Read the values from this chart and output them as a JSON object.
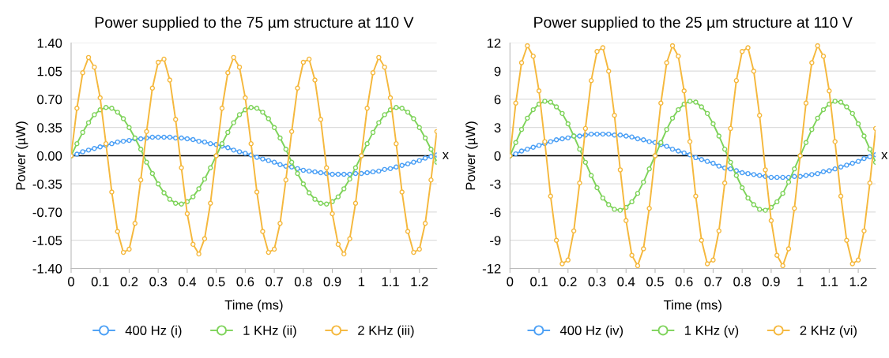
{
  "chart_data": [
    {
      "type": "line",
      "title": "Power supplied to the 75 µm structure at 110 V",
      "xlabel": "Time (ms)",
      "ylabel": "Power (µW)",
      "x": [
        0,
        0.02,
        0.04,
        0.06,
        0.08,
        0.1,
        0.12,
        0.14,
        0.16,
        0.18,
        0.2,
        0.22,
        0.24,
        0.26,
        0.28,
        0.3,
        0.32,
        0.34,
        0.36,
        0.38,
        0.4,
        0.42,
        0.44,
        0.46,
        0.48,
        0.5,
        0.52,
        0.54,
        0.56,
        0.58,
        0.6,
        0.62,
        0.64,
        0.66,
        0.68,
        0.7,
        0.72,
        0.74,
        0.76,
        0.78,
        0.8,
        0.82,
        0.84,
        0.86,
        0.88,
        0.9,
        0.92,
        0.94,
        0.96,
        0.98,
        1.0,
        1.02,
        1.04,
        1.06,
        1.08,
        1.1,
        1.12,
        1.14,
        1.16,
        1.18,
        1.2,
        1.22,
        1.24,
        1.26
      ],
      "series": [
        {
          "name": "400 Hz (i)",
          "color": "#4a9ff5",
          "values": [
            0,
            0.02,
            0.05,
            0.07,
            0.09,
            0.11,
            0.13,
            0.15,
            0.17,
            0.18,
            0.19,
            0.21,
            0.21,
            0.22,
            0.23,
            0.23,
            0.23,
            0.23,
            0.22,
            0.22,
            0.21,
            0.2,
            0.18,
            0.17,
            0.15,
            0.14,
            0.12,
            0.1,
            0.07,
            0.05,
            0.03,
            0.01,
            -0.02,
            -0.04,
            -0.06,
            -0.08,
            -0.11,
            -0.13,
            -0.14,
            -0.16,
            -0.18,
            -0.19,
            -0.2,
            -0.21,
            -0.22,
            -0.23,
            -0.23,
            -0.23,
            -0.23,
            -0.22,
            -0.22,
            -0.21,
            -0.2,
            -0.19,
            -0.17,
            -0.16,
            -0.14,
            -0.12,
            -0.1,
            -0.08,
            -0.06,
            -0.03,
            -0.01,
            0.01
          ]
        },
        {
          "name": "1 KHz (ii)",
          "color": "#7ed35a",
          "values": [
            0,
            0.15,
            0.29,
            0.41,
            0.51,
            0.57,
            0.6,
            0.59,
            0.54,
            0.46,
            0.35,
            0.22,
            0.08,
            -0.08,
            -0.22,
            -0.35,
            -0.46,
            -0.54,
            -0.59,
            -0.6,
            -0.57,
            -0.51,
            -0.41,
            -0.29,
            -0.15,
            0,
            0.15,
            0.29,
            0.41,
            0.51,
            0.57,
            0.6,
            0.59,
            0.54,
            0.46,
            0.35,
            0.22,
            0.08,
            -0.08,
            -0.22,
            -0.35,
            -0.46,
            -0.54,
            -0.59,
            -0.6,
            -0.57,
            -0.51,
            -0.41,
            -0.29,
            -0.15,
            0,
            0.15,
            0.29,
            0.41,
            0.51,
            0.57,
            0.6,
            0.59,
            0.54,
            0.46,
            0.35,
            0.22,
            0.08,
            -0.08
          ]
        },
        {
          "name": "2 KHz (iii)",
          "color": "#f5b83d",
          "values": [
            0,
            0.59,
            1.03,
            1.22,
            1.1,
            0.72,
            0.15,
            -0.45,
            -0.94,
            -1.2,
            -1.16,
            -0.84,
            -0.3,
            0.3,
            0.84,
            1.16,
            1.2,
            0.94,
            0.45,
            -0.15,
            -0.72,
            -1.1,
            -1.22,
            -1.03,
            -0.59,
            0,
            0.59,
            1.03,
            1.22,
            1.1,
            0.72,
            0.15,
            -0.45,
            -0.94,
            -1.2,
            -1.16,
            -0.84,
            -0.3,
            0.3,
            0.84,
            1.16,
            1.2,
            0.94,
            0.45,
            -0.15,
            -0.72,
            -1.1,
            -1.22,
            -1.03,
            -0.59,
            0,
            0.59,
            1.03,
            1.22,
            1.1,
            0.72,
            0.15,
            -0.45,
            -0.94,
            -1.2,
            -1.16,
            -0.84,
            -0.3,
            0.3
          ]
        }
      ],
      "xlim": [
        0,
        1.26
      ],
      "xticks": [
        0,
        0.1,
        0.2,
        0.3,
        0.4,
        0.5,
        0.6,
        0.7,
        0.8,
        0.9,
        1,
        1.1,
        1.2
      ],
      "ylim": [
        -1.4,
        1.4
      ],
      "yticks": [
        {
          "value": -1.4,
          "label": "-1.40"
        },
        {
          "value": -1.05,
          "label": "-1.05"
        },
        {
          "value": -0.7,
          "label": "-0.70"
        },
        {
          "value": -0.35,
          "label": "-0.35"
        },
        {
          "value": 0,
          "label": "0.00"
        },
        {
          "value": 0.35,
          "label": "0.35"
        },
        {
          "value": 0.7,
          "label": "0.70"
        },
        {
          "value": 1.05,
          "label": "1.05"
        },
        {
          "value": 1.4,
          "label": "1.40"
        }
      ],
      "ref_lines": [
        {
          "axis": "y",
          "value": 0,
          "color": "#000000"
        }
      ],
      "annotations": [
        {
          "text": "x",
          "x": 1.26,
          "y": 0
        }
      ],
      "grid": "y",
      "legend": "bottom",
      "marker": "circle",
      "line_style": "solid"
    },
    {
      "type": "line",
      "title": "Power supplied to the 25 µm structure at 110 V",
      "xlabel": "Time (ms)",
      "ylabel": "Power (µW)",
      "x": [
        0,
        0.02,
        0.04,
        0.06,
        0.08,
        0.1,
        0.12,
        0.14,
        0.16,
        0.18,
        0.2,
        0.22,
        0.24,
        0.26,
        0.28,
        0.3,
        0.32,
        0.34,
        0.36,
        0.38,
        0.4,
        0.42,
        0.44,
        0.46,
        0.48,
        0.5,
        0.52,
        0.54,
        0.56,
        0.58,
        0.6,
        0.62,
        0.64,
        0.66,
        0.68,
        0.7,
        0.72,
        0.74,
        0.76,
        0.78,
        0.8,
        0.82,
        0.84,
        0.86,
        0.88,
        0.9,
        0.92,
        0.94,
        0.96,
        0.98,
        1.0,
        1.02,
        1.04,
        1.06,
        1.08,
        1.1,
        1.12,
        1.14,
        1.16,
        1.18,
        1.2,
        1.22,
        1.24,
        1.26
      ],
      "series": [
        {
          "name": "400 Hz (iv)",
          "color": "#4a9ff5",
          "values": [
            0,
            0.2,
            0.5,
            0.7,
            0.9,
            1.1,
            1.3,
            1.5,
            1.7,
            1.8,
            1.9,
            2.1,
            2.1,
            2.2,
            2.3,
            2.3,
            2.3,
            2.3,
            2.2,
            2.2,
            2.1,
            2.0,
            1.8,
            1.7,
            1.5,
            1.4,
            1.2,
            1.0,
            0.7,
            0.5,
            0.3,
            0.1,
            -0.2,
            -0.4,
            -0.6,
            -0.8,
            -1.1,
            -1.3,
            -1.4,
            -1.6,
            -1.8,
            -1.9,
            -2.0,
            -2.1,
            -2.2,
            -2.3,
            -2.3,
            -2.3,
            -2.3,
            -2.2,
            -2.2,
            -2.1,
            -2.0,
            -1.9,
            -1.7,
            -1.6,
            -1.4,
            -1.2,
            -1.0,
            -0.8,
            -0.6,
            -0.3,
            -0.1,
            0.1
          ]
        },
        {
          "name": "1 KHz (v)",
          "color": "#7ed35a",
          "values": [
            0,
            1.4,
            2.8,
            4.0,
            4.9,
            5.5,
            5.8,
            5.7,
            5.2,
            4.5,
            3.4,
            2.1,
            0.7,
            -0.7,
            -2.1,
            -3.4,
            -4.5,
            -5.2,
            -5.7,
            -5.8,
            -5.5,
            -4.9,
            -4.0,
            -2.8,
            -1.4,
            0,
            1.4,
            2.8,
            4.0,
            4.9,
            5.5,
            5.8,
            5.7,
            5.2,
            4.5,
            3.4,
            2.1,
            0.7,
            -0.7,
            -2.1,
            -3.4,
            -4.5,
            -5.2,
            -5.7,
            -5.8,
            -5.5,
            -4.9,
            -4.0,
            -2.8,
            -1.4,
            0,
            1.4,
            2.8,
            4.0,
            4.9,
            5.5,
            5.8,
            5.7,
            5.2,
            4.5,
            3.4,
            2.1,
            0.7,
            -0.7
          ]
        },
        {
          "name": "2 KHz (vi)",
          "color": "#f5b83d",
          "values": [
            0,
            5.6,
            9.9,
            11.7,
            10.6,
            6.9,
            1.5,
            -4.3,
            -9.0,
            -11.5,
            -11.1,
            -8.0,
            -2.9,
            2.9,
            8.0,
            11.1,
            11.5,
            9.0,
            4.3,
            -1.5,
            -6.9,
            -10.6,
            -11.7,
            -9.9,
            -5.6,
            0,
            5.6,
            9.9,
            11.7,
            10.6,
            6.9,
            1.5,
            -4.3,
            -9.0,
            -11.5,
            -11.1,
            -8.0,
            -2.9,
            2.9,
            8.0,
            11.1,
            11.5,
            9.0,
            4.3,
            -1.5,
            -6.9,
            -10.6,
            -11.7,
            -9.9,
            -5.6,
            0,
            5.6,
            9.9,
            11.7,
            10.6,
            6.9,
            1.5,
            -4.3,
            -9.0,
            -11.5,
            -11.1,
            -8.0,
            -2.9,
            2.9
          ]
        }
      ],
      "xlim": [
        0,
        1.26
      ],
      "xticks": [
        0,
        0.1,
        0.2,
        0.3,
        0.4,
        0.5,
        0.6,
        0.7,
        0.8,
        0.9,
        1,
        1.1,
        1.2
      ],
      "ylim": [
        -12,
        12
      ],
      "yticks": [
        -12,
        -9,
        -6,
        -3,
        0,
        3,
        6,
        9,
        12
      ],
      "ref_lines": [
        {
          "axis": "y",
          "value": 0,
          "color": "#000000"
        }
      ],
      "annotations": [
        {
          "text": "x",
          "x": 1.26,
          "y": 0
        }
      ],
      "grid": "y",
      "legend": "bottom",
      "marker": "circle",
      "line_style": "solid"
    }
  ]
}
